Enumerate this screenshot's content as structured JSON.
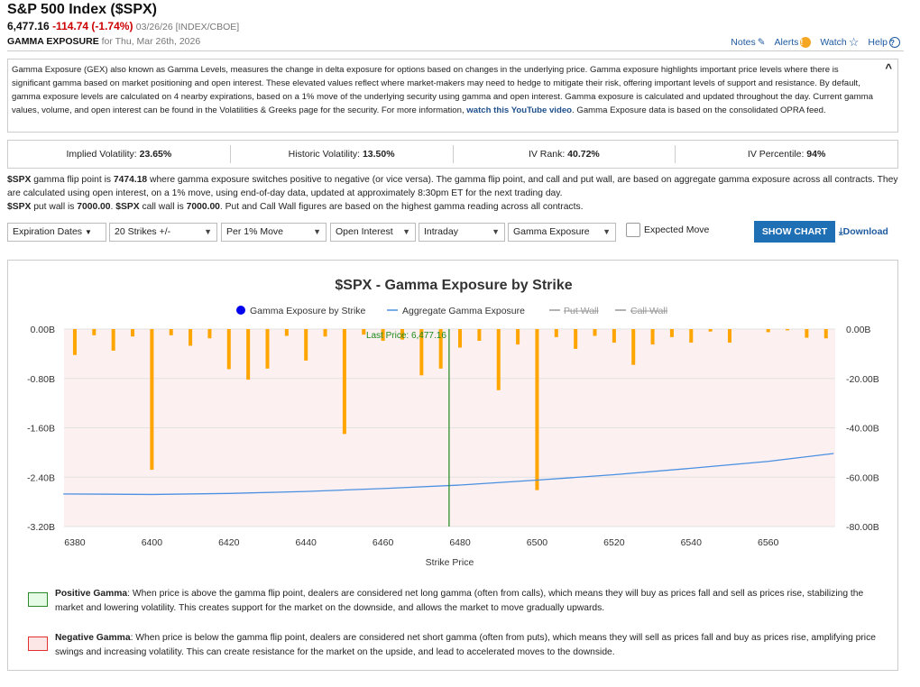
{
  "header": {
    "title": "S&P 500 Index ($SPX)",
    "last": "6,477.16",
    "change": "-114.74 (-1.74%)",
    "meta": "03/26/26 [INDEX/CBOE]",
    "section": "GAMMA EXPOSURE",
    "date": "for Thu, Mar 26th, 2026"
  },
  "links": {
    "notes": "Notes",
    "alerts": "Alerts",
    "watch": "Watch",
    "help": "Help"
  },
  "description": {
    "text1": "Gamma Exposure (GEX) also known as Gamma Levels, measures the change in delta exposure for options based on changes in the underlying price. Gamma exposure highlights important price levels where there is significant gamma based on market positioning and open interest. These elevated values reflect where market-makers may need to hedge to mitigate their risk, offering important levels of support and resistance. By default, gamma exposure levels are calculated on 4 nearby expirations, based on a 1% move of the underlying security using gamma and open interest. Gamma exposure is calculated and updated throughout the day. Current gamma values, volume, and open interest can be found in the Volatilities & Greeks page for the security. For more information, ",
    "link": "watch this YouTube video",
    "text2": ". Gamma Exposure data is based on the consolidated OPRA feed."
  },
  "stats": [
    {
      "label": "Implied Volatility: ",
      "value": "23.65%"
    },
    {
      "label": "Historic Volatility: ",
      "value": "13.50%"
    },
    {
      "label": "IV Rank: ",
      "value": "40.72%"
    },
    {
      "label": "IV Percentile: ",
      "value": "94%"
    }
  ],
  "flip": {
    "sym": "$SPX",
    "t1": " gamma flip point is ",
    "flip": "7474.18",
    "t2": " where gamma exposure switches positive to negative (or vice versa). The gamma flip point, and call and put wall, are based on aggregate gamma exposure across all contracts. They are calculated using open interest, on a 1% move, using end-of-day data, updated at approximately 8:30pm ET for the next trading day.",
    "t3": " put wall is ",
    "put": "7000.00",
    "t4": ". ",
    "t5": " call wall is ",
    "call": "7000.00",
    "t6": ". Put and Call Wall figures are based on the highest gamma reading across all contracts."
  },
  "controls": {
    "expiration": "Expiration Dates",
    "strikes": "20 Strikes +/-",
    "move": "Per 1% Move",
    "oi": "Open Interest",
    "period": "Intraday",
    "metric": "Gamma Exposure",
    "expected": "Expected Move",
    "show": "SHOW CHART",
    "download": "Download"
  },
  "chart_data": {
    "type": "bar",
    "title": "$SPX - Gamma Exposure by Strike",
    "xlabel": "Strike Price",
    "legend": [
      "Gamma Exposure by Strike",
      "Aggregate Gamma Exposure",
      "Put Wall",
      "Call Wall"
    ],
    "xlim": [
      6377.2,
      6577.4
    ],
    "xticks": [
      "6380",
      "6400",
      "6420",
      "6440",
      "6460",
      "6480",
      "6500",
      "6520",
      "6540",
      "6560"
    ],
    "yleft_ticks": [
      "0.00B",
      "-0.80B",
      "-1.60B",
      "-2.40B",
      "-3.20B"
    ],
    "yright_ticks": [
      "0.00B",
      "-20.00B",
      "-40.00B",
      "-60.00B",
      "-80.00B"
    ],
    "ylim_left": [
      -3.2,
      0
    ],
    "ylim_right": [
      -80,
      0
    ],
    "strikes": [
      6380,
      6385,
      6390,
      6395,
      6400,
      6405,
      6410,
      6415,
      6420,
      6425,
      6430,
      6435,
      6440,
      6445,
      6450,
      6455,
      6460,
      6465,
      6470,
      6475,
      6480,
      6485,
      6490,
      6495,
      6500,
      6505,
      6510,
      6515,
      6520,
      6525,
      6530,
      6535,
      6540,
      6545,
      6550,
      6555,
      6560,
      6565,
      6570,
      6575
    ],
    "gamma_by_strike": [
      -0.42,
      -0.1,
      -0.35,
      -0.12,
      -2.28,
      -0.1,
      -0.27,
      -0.15,
      -0.65,
      -0.82,
      -0.64,
      -0.11,
      -0.51,
      -0.12,
      -1.7,
      -0.09,
      -0.19,
      -0.17,
      -0.75,
      -0.64,
      -0.3,
      -0.19,
      -0.99,
      -0.25,
      -2.61,
      -0.13,
      -0.32,
      -0.11,
      -0.22,
      -0.58,
      -0.25,
      -0.13,
      -0.22,
      -0.04,
      -0.22,
      0,
      -0.05,
      -0.02,
      -0.14,
      -0.15
    ],
    "aggregate": {
      "x": [
        6377,
        6400,
        6420,
        6440,
        6460,
        6480,
        6500,
        6520,
        6540,
        6560,
        6577
      ],
      "y": [
        -66.8,
        -67.0,
        -66.6,
        -65.8,
        -64.6,
        -63.2,
        -61.2,
        -59.0,
        -56.4,
        -53.6,
        -50.4
      ]
    },
    "last_price": 6477.16,
    "last_price_label": "Last Price: 6,477.16",
    "colors": {
      "bar": "#ffa500",
      "line": "#4a90e2",
      "last": "#1a8a1a",
      "bg": "#fdf0f0"
    }
  },
  "notes": [
    {
      "title": "Positive Gamma",
      "text": ": When price is above the gamma flip point, dealers are considered net long gamma (often from calls), which means they will buy as prices fall and sell as prices rise, stabilizing the market and lowering volatility. This creates support for the market on the downside, and allows the market to move gradually upwards."
    },
    {
      "title": "Negative Gamma",
      "text": ": When price is below the gamma flip point, dealers are considered net short gamma (often from puts), which means they will sell as prices fall and buy as prices rise, amplifying price swings and increasing volatility. This can create resistance for the market on the upside, and lead to accelerated moves to the downside."
    }
  ]
}
